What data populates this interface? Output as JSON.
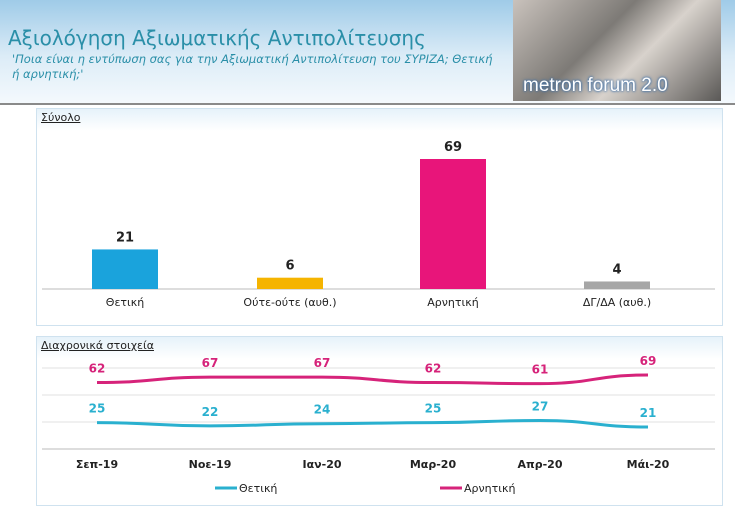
{
  "header": {
    "title": "Αξιολόγηση Αξιωματικής Αντιπολίτευσης",
    "subtitle": "'Ποια είναι η εντύπωση σας για την Αξιωματική Αντιπολίτευση του ΣΥΡΙΖΑ; Θετική ή αρνητική;'",
    "logo_text": "metron forum 2.0"
  },
  "chart_data": [
    {
      "type": "bar",
      "title": "Σύνολο",
      "categories": [
        "Θετική",
        "Ούτε-ούτε (αυθ.)",
        "Αρνητική",
        "ΔΓ/ΔΑ (αυθ.)"
      ],
      "values": [
        21,
        6,
        69,
        4
      ],
      "colors": [
        "#1aa3dc",
        "#f5b400",
        "#e8157a",
        "#a6a6a6"
      ],
      "ylim": [
        0,
        75
      ]
    },
    {
      "type": "line",
      "title": "Διαχρονικά στοιχεία",
      "categories": [
        "Σεπ-19",
        "Νοε-19",
        "Ιαν-20",
        "Μαρ-20",
        "Απρ-20",
        "Μάι-20"
      ],
      "series": [
        {
          "name": "Θετική",
          "values": [
            25,
            22,
            24,
            25,
            27,
            21
          ],
          "color": "#2ab0cf"
        },
        {
          "name": "Αρνητική",
          "values": [
            62,
            67,
            67,
            62,
            61,
            69
          ],
          "color": "#d6237a"
        }
      ],
      "legend": "bottom"
    }
  ]
}
